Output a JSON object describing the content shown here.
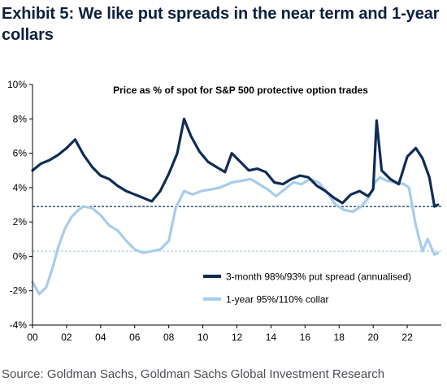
{
  "header": {
    "title": "Exhibit 5: We like put spreads in the near term and 1-year collars"
  },
  "footer": {
    "source": "Source: Goldman Sachs, Goldman Sachs Global Investment Research"
  },
  "colors": {
    "put_spread": "#0f2c55",
    "collar": "#a8ccec",
    "axis": "#000000"
  },
  "chart_data": {
    "type": "line",
    "title": "Price as % of spot for S&P 500 protective option trades",
    "xlabel": "",
    "ylabel": "",
    "xlim": [
      2000,
      2024
    ],
    "ylim": [
      -4,
      10
    ],
    "x_ticks": [
      2000,
      2002,
      2004,
      2006,
      2008,
      2010,
      2012,
      2014,
      2016,
      2018,
      2020,
      2022
    ],
    "x_tick_labels": [
      "00",
      "02",
      "04",
      "06",
      "08",
      "10",
      "12",
      "14",
      "16",
      "18",
      "20",
      "22"
    ],
    "y_ticks": [
      -4,
      -2,
      0,
      2,
      4,
      6,
      8,
      10
    ],
    "y_tick_labels": [
      "-4%",
      "-2%",
      "0%",
      "2%",
      "4%",
      "6%",
      "8%",
      "10%"
    ],
    "grid": false,
    "legend_position": "bottom-right",
    "reference_lines": [
      {
        "series": "3-month 98%/93% put spread (annualised)",
        "y": 2.9
      },
      {
        "series": "1-year 95%/110% collar",
        "y": 0.3
      }
    ],
    "series": [
      {
        "name": "3-month 98%/93% put spread (annualised)",
        "x": [
          2000.0,
          2000.5,
          2001.0,
          2001.5,
          2002.0,
          2002.5,
          2003.0,
          2003.5,
          2004.0,
          2004.5,
          2005.0,
          2005.5,
          2006.0,
          2006.5,
          2007.0,
          2007.5,
          2008.0,
          2008.5,
          2008.9,
          2009.3,
          2009.8,
          2010.3,
          2010.8,
          2011.3,
          2011.7,
          2012.2,
          2012.7,
          2013.2,
          2013.7,
          2014.2,
          2014.7,
          2015.2,
          2015.7,
          2016.2,
          2016.7,
          2017.2,
          2017.7,
          2018.2,
          2018.7,
          2019.2,
          2019.7,
          2020.0,
          2020.2,
          2020.5,
          2021.0,
          2021.5,
          2022.0,
          2022.5,
          2022.9,
          2023.3,
          2023.6,
          2023.8
        ],
        "y": [
          5.0,
          5.4,
          5.6,
          5.9,
          6.3,
          6.8,
          5.9,
          5.2,
          4.7,
          4.5,
          4.1,
          3.8,
          3.6,
          3.4,
          3.2,
          3.8,
          4.8,
          6.0,
          8.0,
          7.0,
          6.1,
          5.5,
          5.2,
          4.9,
          6.0,
          5.5,
          5.0,
          5.1,
          4.9,
          4.3,
          4.2,
          4.5,
          4.7,
          4.6,
          4.1,
          3.8,
          3.4,
          3.1,
          3.6,
          3.8,
          3.5,
          3.9,
          7.9,
          5.0,
          4.5,
          4.2,
          5.8,
          6.3,
          5.7,
          4.6,
          2.9,
          3.0
        ]
      },
      {
        "name": "1-year 95%/110% collar",
        "x": [
          2000.0,
          2000.4,
          2000.8,
          2001.2,
          2001.5,
          2001.9,
          2002.3,
          2002.7,
          2003.0,
          2003.5,
          2004.0,
          2004.5,
          2005.0,
          2005.5,
          2006.0,
          2006.5,
          2007.0,
          2007.5,
          2008.0,
          2008.4,
          2008.9,
          2009.4,
          2009.9,
          2010.5,
          2011.0,
          2011.7,
          2012.3,
          2012.8,
          2013.3,
          2013.8,
          2014.3,
          2014.8,
          2015.3,
          2015.8,
          2016.3,
          2016.8,
          2017.3,
          2017.8,
          2018.3,
          2018.8,
          2019.3,
          2019.8,
          2020.1,
          2020.4,
          2020.8,
          2021.3,
          2021.8,
          2022.1,
          2022.5,
          2022.9,
          2023.2,
          2023.6,
          2023.8
        ],
        "y": [
          -1.5,
          -2.2,
          -1.8,
          -0.6,
          0.5,
          1.6,
          2.3,
          2.7,
          2.9,
          2.8,
          2.4,
          1.8,
          1.5,
          0.9,
          0.4,
          0.2,
          0.3,
          0.4,
          0.9,
          2.8,
          3.8,
          3.6,
          3.8,
          3.9,
          4.0,
          4.3,
          4.4,
          4.5,
          4.2,
          3.9,
          3.5,
          3.9,
          4.3,
          4.2,
          4.5,
          4.3,
          3.7,
          3.0,
          2.7,
          2.6,
          2.9,
          3.5,
          4.3,
          4.6,
          4.4,
          4.3,
          4.2,
          4.0,
          1.8,
          0.3,
          1.0,
          0.1,
          0.2
        ]
      }
    ]
  }
}
